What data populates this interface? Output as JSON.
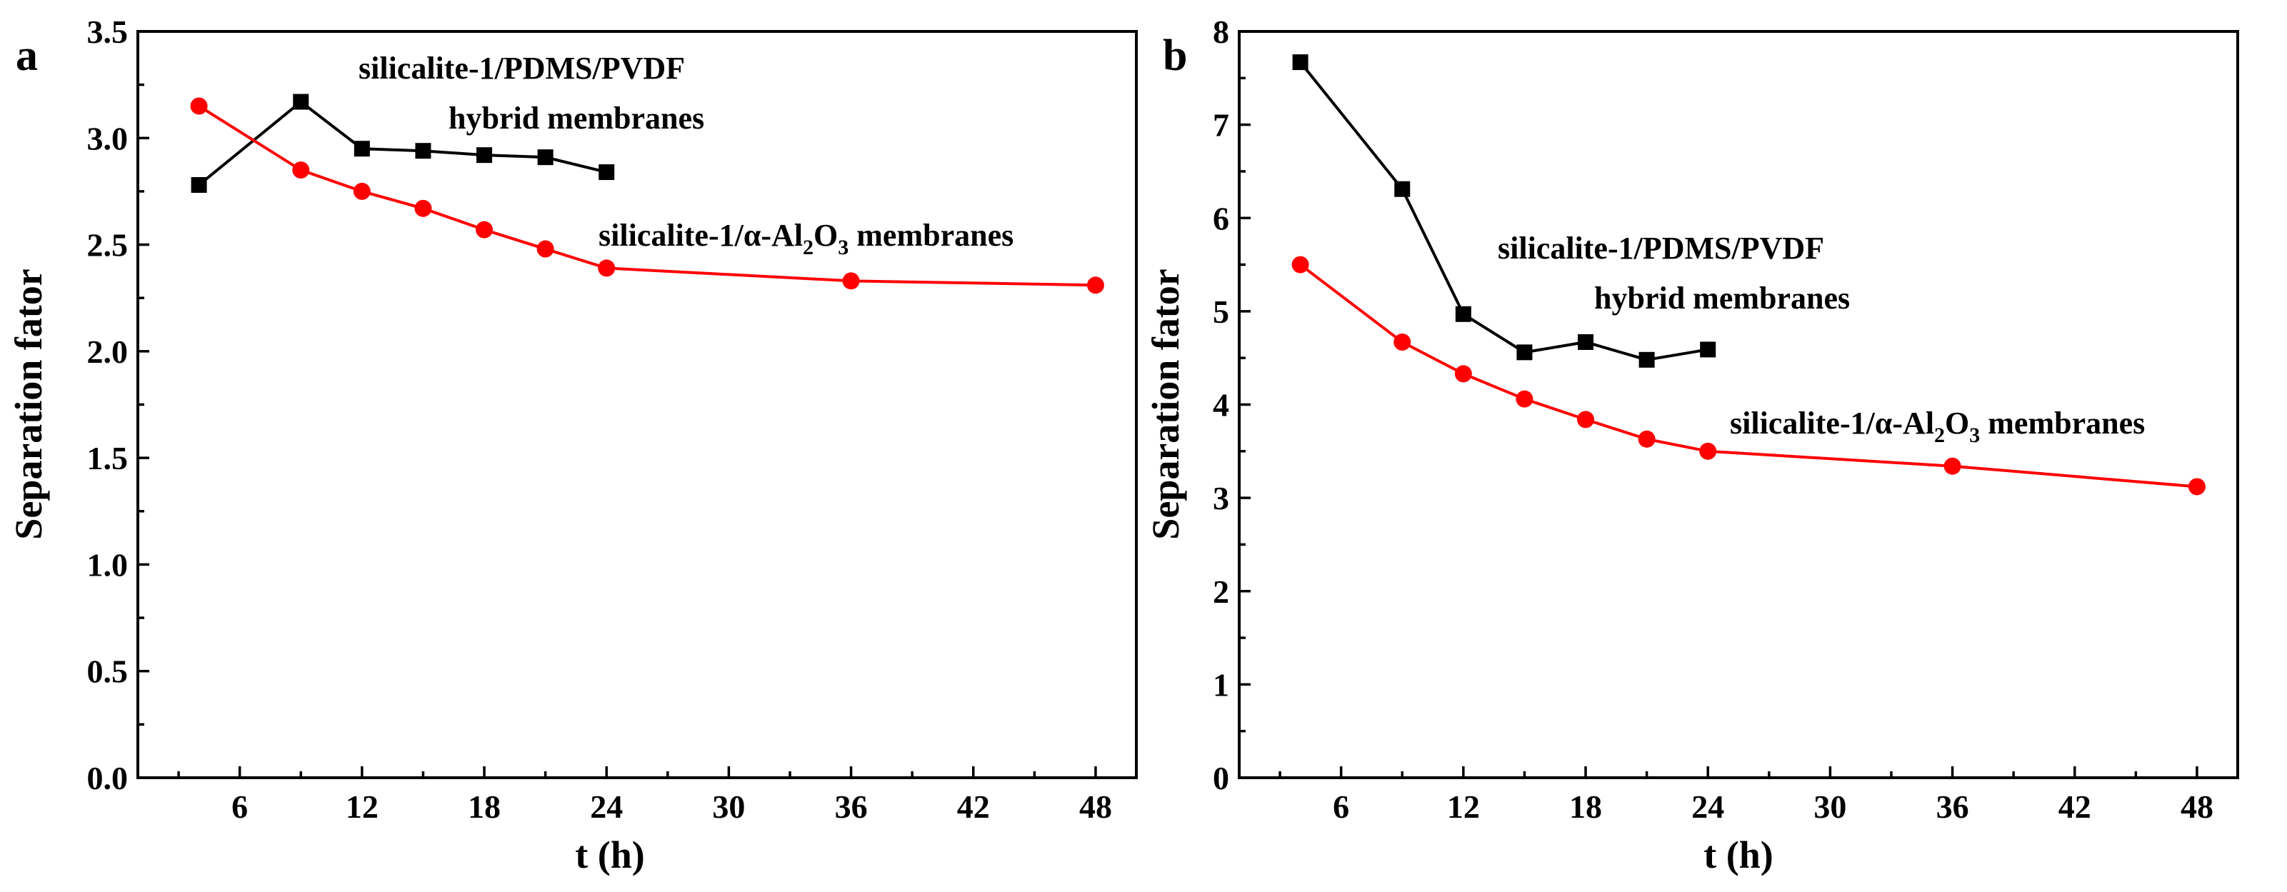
{
  "chart_data": [
    {
      "panel": "a",
      "type": "line",
      "xlabel": "t (h)",
      "ylabel": "Separation fator",
      "xlim": [
        1,
        50
      ],
      "ylim": [
        0,
        3.5
      ],
      "xticks": [
        6,
        12,
        18,
        24,
        30,
        36,
        42,
        48
      ],
      "yticks": [
        0.0,
        0.5,
        1.0,
        1.5,
        2.0,
        2.5,
        3.0,
        3.5
      ],
      "xtick_labels": [
        "6",
        "12",
        "18",
        "24",
        "30",
        "36",
        "42",
        "48"
      ],
      "ytick_labels": [
        "0.0",
        "0.5",
        "1.0",
        "1.5",
        "2.0",
        "2.5",
        "3.0",
        "3.5"
      ],
      "series": [
        {
          "name": "silicalite-1/PDMS/PVDF hybrid membranes",
          "color": "#000000",
          "marker": "square",
          "x": [
            4,
            9,
            12,
            15,
            18,
            21,
            24
          ],
          "values": [
            2.78,
            3.17,
            2.95,
            2.94,
            2.92,
            2.91,
            2.84
          ]
        },
        {
          "name": "silicalite-1/α-Al2O3 membranes",
          "color": "#ff0000",
          "marker": "circle",
          "x": [
            4,
            9,
            12,
            15,
            18,
            21,
            24,
            36,
            48
          ],
          "values": [
            3.15,
            2.85,
            2.75,
            2.67,
            2.57,
            2.48,
            2.39,
            2.33,
            2.31
          ]
        }
      ],
      "annotations": {
        "hybrid_line1": "silicalite-1/PDMS/PVDF",
        "hybrid_line2": "hybrid membranes",
        "alumina_prefix": "silicalite-1/α-Al",
        "alumina_sub1": "2",
        "alumina_mid": "O",
        "alumina_sub2": "3",
        "alumina_suffix": " membranes"
      }
    },
    {
      "panel": "b",
      "type": "line",
      "xlabel": "t (h)",
      "ylabel": "Separation fator",
      "xlim": [
        1,
        50
      ],
      "ylim": [
        0,
        8
      ],
      "xticks": [
        6,
        12,
        18,
        24,
        30,
        36,
        42,
        48
      ],
      "yticks": [
        0,
        1,
        2,
        3,
        4,
        5,
        6,
        7,
        8
      ],
      "xtick_labels": [
        "6",
        "12",
        "18",
        "24",
        "30",
        "36",
        "42",
        "48"
      ],
      "ytick_labels": [
        "0",
        "1",
        "2",
        "3",
        "4",
        "5",
        "6",
        "7",
        "8"
      ],
      "series": [
        {
          "name": "silicalite-1/PDMS/PVDF hybrid membranes",
          "color": "#000000",
          "marker": "square",
          "x": [
            4,
            9,
            12,
            15,
            18,
            21,
            24
          ],
          "values": [
            7.67,
            6.31,
            4.97,
            4.56,
            4.67,
            4.48,
            4.59
          ]
        },
        {
          "name": "silicalite-1/α-Al2O3 membranes",
          "color": "#ff0000",
          "marker": "circle",
          "x": [
            4,
            9,
            12,
            15,
            18,
            21,
            24,
            36,
            48
          ],
          "values": [
            5.5,
            4.67,
            4.33,
            4.06,
            3.84,
            3.63,
            3.5,
            3.34,
            3.12
          ]
        }
      ],
      "annotations": {
        "hybrid_line1": "silicalite-1/PDMS/PVDF",
        "hybrid_line2": "hybrid membranes",
        "alumina_prefix": "silicalite-1/α-Al",
        "alumina_sub1": "2",
        "alumina_mid": "O",
        "alumina_sub2": "3",
        "alumina_suffix": " membranes"
      }
    }
  ]
}
